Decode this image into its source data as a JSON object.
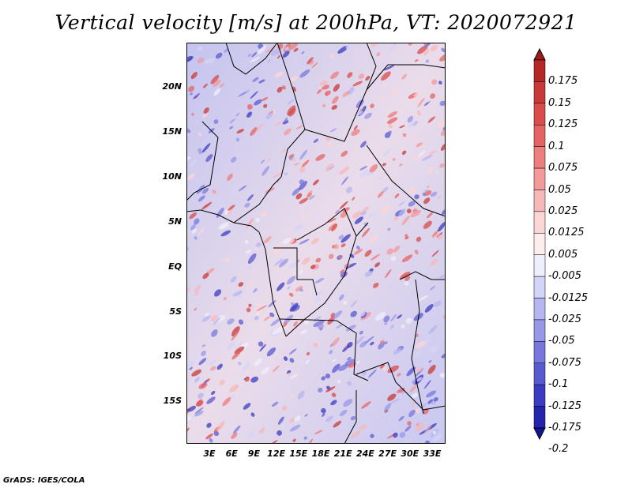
{
  "title": "Vertical velocity [m/s] at 200hPa, VT: 2020072921",
  "y_axis_labels": [
    "20N",
    "15N",
    "10N",
    "5N",
    "EQ",
    "5S",
    "10S",
    "15S"
  ],
  "x_axis_labels": [
    "3E",
    "6E",
    "9E",
    "12E",
    "15E",
    "18E",
    "21E",
    "24E",
    "27E",
    "30E",
    "33E"
  ],
  "map_extent": {
    "lon": [
      0,
      35
    ],
    "lat": [
      -20,
      25
    ]
  },
  "colorbar": {
    "labels": [
      "0.175",
      "0.15",
      "0.125",
      "0.1",
      "0.075",
      "0.05",
      "0.025",
      "0.0125",
      "0.005",
      "-0.005",
      "-0.0125",
      "-0.025",
      "-0.05",
      "-0.075",
      "-0.1",
      "-0.125",
      "-0.175",
      "-0.2"
    ],
    "colors": [
      "#a11a1a",
      "#b42828",
      "#c83a3a",
      "#d84c4c",
      "#e46464",
      "#ec7e7e",
      "#f39a9a",
      "#f7b8b8",
      "#fbd6d6",
      "#fdeeee",
      "#eeeefc",
      "#d4d4f8",
      "#b6b6f0",
      "#9898e8",
      "#7878dc",
      "#5a5ad0",
      "#3c3cc0",
      "#2424ac",
      "#14149a"
    ]
  },
  "credit": "GrADS: IGES/COLA"
}
